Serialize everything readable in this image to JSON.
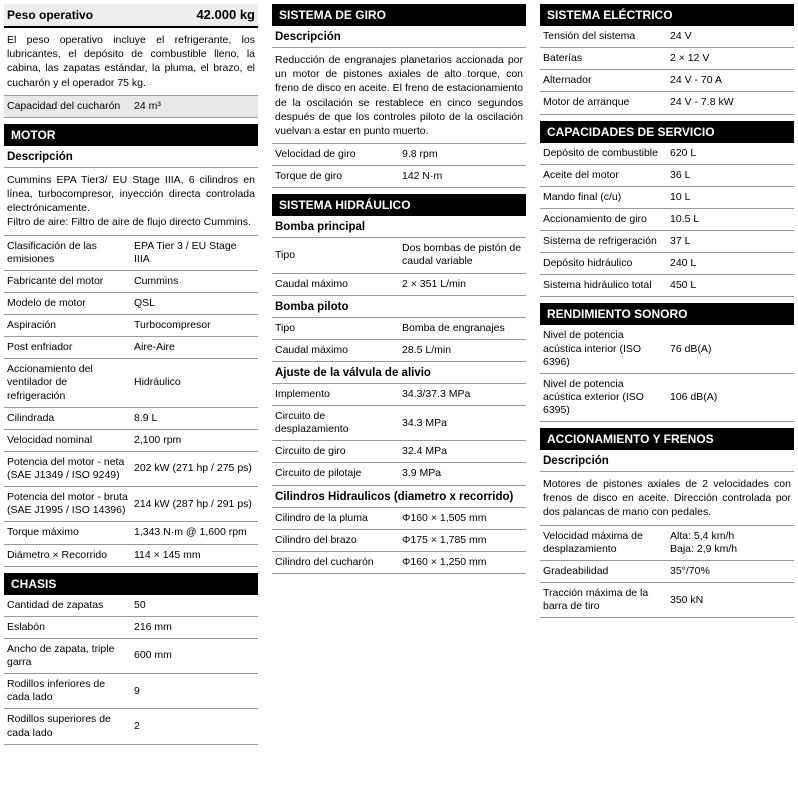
{
  "col1": {
    "peso": {
      "label": "Peso operativo",
      "value": "42.000 kg",
      "desc": "El peso operativo incluye el refrigerante, los lubricantes, el depósito de combustible lleno, la cabina, las zapatas estándar, la pluma, el brazo, el cucharón y el operador 75 kg.",
      "cap_label": "Capacidad del cucharón",
      "cap_value": "24 m³"
    },
    "motor": {
      "title": "MOTOR",
      "desc_h": "Descripción",
      "desc": "Cummins EPA Tier3/ EU Stage IIIA, 6 cilindros en línea, turbocompresor, inyección directa controlada electrónicamente.\nFiltro de aire: Filtro de aire de flujo directo Cummins.",
      "rows": [
        [
          "Clasificación de las emisiones",
          "EPA Tier 3 / EU Stage IIIA"
        ],
        [
          "Fabricante del motor",
          "Cummins"
        ],
        [
          "Modelo de motor",
          "QSL"
        ],
        [
          "Aspiración",
          "Turbocompresor"
        ],
        [
          "Post enfriador",
          "Aire-Aire"
        ],
        [
          "Accionamiento del ventilador de refrigeración",
          "Hidráulico"
        ],
        [
          "Cilindrada",
          "8.9 L"
        ],
        [
          "Velocidad nominal",
          "2,100 rpm"
        ],
        [
          "Potencia del motor - neta (SAE J1349 / ISO 9249)",
          "202 kW (271 hp / 275 ps)"
        ],
        [
          "Potencia del motor - bruta (SAE J1995 / ISO 14396)",
          "214 kW (287 hp / 291 ps)"
        ],
        [
          "Torque máximo",
          "1,343 N·m @ 1,600 rpm"
        ],
        [
          "Diámetro × Recorrido",
          "114 × 145 mm"
        ]
      ]
    },
    "chasis": {
      "title": "CHASIS",
      "rows": [
        [
          "Cantidad de zapatas",
          "50"
        ],
        [
          "Eslabón",
          "216 mm"
        ],
        [
          "Ancho de zapata, triple garra",
          "600 mm"
        ],
        [
          "Rodillos inferiores de cada lado",
          "9"
        ],
        [
          "Rodillos superiores de cada lado",
          "2"
        ]
      ]
    }
  },
  "col2": {
    "giro": {
      "title": "SISTEMA DE GIRO",
      "desc_h": "Descripción",
      "desc": "Reducción de engranajes planetarios accionada por un motor de pistones axiales de alto torque, con freno de disco en aceite. El freno de estacionamiento de la oscilación se restablece en cinco segundos después de que los controles piloto de la oscilación vuelvan a estar en punto muerto.",
      "rows": [
        [
          "Velocidad de giro",
          "9.8 rpm"
        ],
        [
          "Torque de giro",
          "142 N·m"
        ]
      ]
    },
    "hidra": {
      "title": "SISTEMA HIDRÁULICO",
      "bomba_p": "Bomba principal",
      "bp_rows": [
        [
          "Tipo",
          "Dos bombas de pistón de caudal variable"
        ],
        [
          "Caudal máximo",
          "2 × 351 L/min"
        ]
      ],
      "bomba_pil": "Bomba piloto",
      "bpil_rows": [
        [
          "Tipo",
          "Bomba de engranajes"
        ],
        [
          "Caudal máximo",
          "28.5 L/min"
        ]
      ],
      "valv": "Ajuste de la válvula de alivio",
      "valv_rows": [
        [
          "Implemento",
          "34.3/37.3 MPa"
        ],
        [
          "Circuito de desplazamiento",
          "34.3 MPa"
        ],
        [
          "Circuito de giro",
          "32.4 MPa"
        ],
        [
          "Circuito de pilotaje",
          "3.9 MPa"
        ]
      ],
      "cil": "Cilindros Hidraulicos (diametro x recorrido)",
      "cil_rows": [
        [
          "Cilindro de la pluma",
          "Φ160 × 1,505 mm"
        ],
        [
          "Cilindro del brazo",
          "Φ175 × 1,785 mm"
        ],
        [
          "Cilindro del cucharón",
          "Φ160 × 1,250 mm"
        ]
      ]
    }
  },
  "col3": {
    "elec": {
      "title": "SISTEMA ELÉCTRICO",
      "rows": [
        [
          "Tensión del sistema",
          "24 V"
        ],
        [
          "Baterías",
          "2 × 12 V"
        ],
        [
          "Alternador",
          "24 V - 70 A"
        ],
        [
          "Motor de arranque",
          "24 V - 7.8 kW"
        ]
      ]
    },
    "cap": {
      "title": "CAPACIDADES DE SERVICIO",
      "rows": [
        [
          "Depósito de combustible",
          "620 L"
        ],
        [
          "Aceite del motor",
          "36 L"
        ],
        [
          "Mando final (c/u)",
          "10 L"
        ],
        [
          "Accionamiento de giro",
          "10.5 L"
        ],
        [
          "Sistema de refrigeración",
          "37 L"
        ],
        [
          "Depósito hidráulico",
          "240 L"
        ],
        [
          "Sistema hidráulico total",
          "450 L"
        ]
      ]
    },
    "sono": {
      "title": "RENDIMIENTO SONORO",
      "rows": [
        [
          "Nivel de potencia acústica interior (ISO 6396)",
          "76 dB(A)"
        ],
        [
          "Nivel de potencia acústica exterior (ISO 6395)",
          "106 dB(A)"
        ]
      ]
    },
    "acc": {
      "title": "ACCIONAMIENTO Y FRENOS",
      "desc_h": "Descripción",
      "desc": "Motores de pistones axiales de 2 velocidades con frenos de disco en aceite. Dirección controlada por dos palancas de mano con pedales.",
      "rows": [
        [
          "Velocidad máxima de desplazamiento",
          "Alta: 5,4 km/h\nBaja: 2,9 km/h"
        ],
        [
          "Gradeabilidad",
          "35°/70%"
        ],
        [
          "Tracción máxima de la barra de tiro",
          "350 kN"
        ]
      ]
    }
  }
}
